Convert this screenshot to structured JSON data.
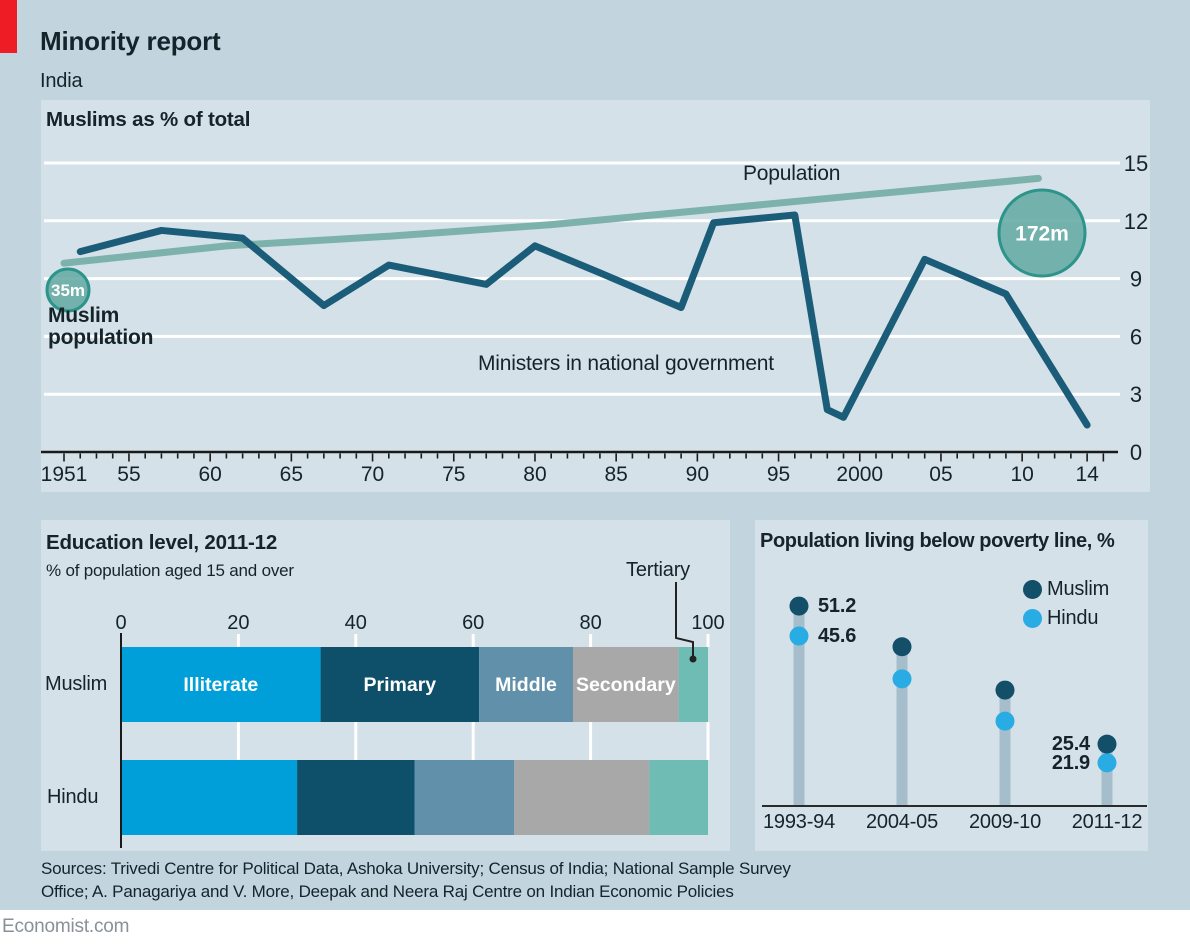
{
  "page": {
    "title": "Minority report",
    "subtitle": "India",
    "footer_line1": "Sources: Trivedi Centre for Political Data, Ashoka University; Census of India; National Sample Survey",
    "footer_line2": "Office; A. Panagariya and V. More, Deepak and Neera Raj Centre on Indian Economic Policies",
    "brand": "Economist.com"
  },
  "colors": {
    "page_bg": "#c2d5de",
    "panel_bg": "#d4e1e8",
    "red_tab": "#ee1c25",
    "gridline": "#ffffff",
    "axis": "#1a1a1a",
    "text": "#15232b",
    "brand_grey": "#8a9196",
    "population_line": "#7db1ac",
    "ministers_line": "#1b5d78",
    "bubble_fill": "#61a8a1",
    "bubble_stroke": "#2c948a",
    "illiterate": "#009fda",
    "primary": "#0e4f69",
    "middle": "#6191aa",
    "secondary": "#a8a8a8",
    "tertiary": "#6ebcb4",
    "muslim_dot": "#134f68",
    "hindu_dot": "#29ace3",
    "stem": "#a6becc"
  },
  "chart_data": [
    {
      "type": "line",
      "title": "Muslims as % of total",
      "xlim": [
        1951,
        2016
      ],
      "ylim": [
        0,
        15
      ],
      "grid": true,
      "y_ticks": [
        0,
        3,
        6,
        9,
        12,
        15
      ],
      "x_ticks": [
        {
          "label": "1951",
          "year": 1951
        },
        {
          "label": "55",
          "year": 1955
        },
        {
          "label": "60",
          "year": 1960
        },
        {
          "label": "65",
          "year": 1965
        },
        {
          "label": "70",
          "year": 1970
        },
        {
          "label": "75",
          "year": 1975
        },
        {
          "label": "80",
          "year": 1980
        },
        {
          "label": "85",
          "year": 1985
        },
        {
          "label": "90",
          "year": 1990
        },
        {
          "label": "95",
          "year": 1995
        },
        {
          "label": "2000",
          "year": 2000
        },
        {
          "label": "05",
          "year": 2005
        },
        {
          "label": "10",
          "year": 2010
        },
        {
          "label": "14",
          "year": 2014
        }
      ],
      "series": [
        {
          "name": "Population",
          "color": "#7db1ac",
          "points": [
            [
              1951,
              9.8
            ],
            [
              1961,
              10.7
            ],
            [
              1971,
              11.2
            ],
            [
              1981,
              11.8
            ],
            [
              1991,
              12.6
            ],
            [
              2001,
              13.4
            ],
            [
              2011,
              14.2
            ]
          ]
        },
        {
          "name": "Ministers in national government",
          "color": "#1b5d78",
          "points": [
            [
              1952,
              10.4
            ],
            [
              1957,
              11.5
            ],
            [
              1962,
              11.1
            ],
            [
              1967,
              7.6
            ],
            [
              1971,
              9.7
            ],
            [
              1977,
              8.7
            ],
            [
              1980,
              10.7
            ],
            [
              1984,
              9.3
            ],
            [
              1989,
              7.5
            ],
            [
              1991,
              11.9
            ],
            [
              1996,
              12.3
            ],
            [
              1998,
              2.2
            ],
            [
              1999,
              1.8
            ],
            [
              2004,
              10.0
            ],
            [
              2009,
              8.2
            ],
            [
              2014,
              1.4
            ]
          ]
        }
      ],
      "annotations": {
        "bubble_label": "Muslim population",
        "bubbles": [
          {
            "label": "35m",
            "year": 1951,
            "value": 9.8
          },
          {
            "label": "172m",
            "year": 2011,
            "value": 14.2
          }
        ]
      }
    },
    {
      "type": "bar",
      "title": "Education level, 2011-12",
      "subtitle": "% of population aged 15 and over",
      "stacked": true,
      "orientation": "horizontal",
      "categories": [
        "Muslim",
        "Hindu"
      ],
      "segments": [
        "Illiterate",
        "Primary",
        "Middle",
        "Secondary",
        "Tertiary"
      ],
      "segment_colors": [
        "#009fda",
        "#0e4f69",
        "#6191aa",
        "#a8a8a8",
        "#6ebcb4"
      ],
      "values": [
        [
          34,
          27,
          16,
          18,
          5
        ],
        [
          30,
          20,
          17,
          23,
          10
        ]
      ],
      "x_ticks": [
        0,
        20,
        40,
        60,
        80,
        100
      ],
      "xlim": [
        0,
        100
      ],
      "callout_label": "Tertiary",
      "labels_on_bar": [
        "Illiterate",
        "Primary",
        "Middle",
        "Secondary"
      ]
    },
    {
      "type": "lollipop",
      "title": "Population living below poverty line, %",
      "categories": [
        "1993-94",
        "2004-05",
        "2009-10",
        "2011-12"
      ],
      "series": [
        {
          "name": "Muslim",
          "color": "#134f68",
          "values": [
            51.2,
            43.6,
            35.5,
            25.4
          ]
        },
        {
          "name": "Hindu",
          "color": "#29ace3",
          "values": [
            45.6,
            37.6,
            29.7,
            21.9
          ]
        }
      ],
      "legend_position": "top-right",
      "point_labels": [
        {
          "text": "51.2",
          "category": "1993-94",
          "series": "Muslim",
          "side": "right"
        },
        {
          "text": "45.6",
          "category": "1993-94",
          "series": "Hindu",
          "side": "right"
        },
        {
          "text": "25.4",
          "category": "2011-12",
          "series": "Muslim",
          "side": "left"
        },
        {
          "text": "21.9",
          "category": "2011-12",
          "series": "Hindu",
          "side": "left"
        }
      ]
    }
  ]
}
